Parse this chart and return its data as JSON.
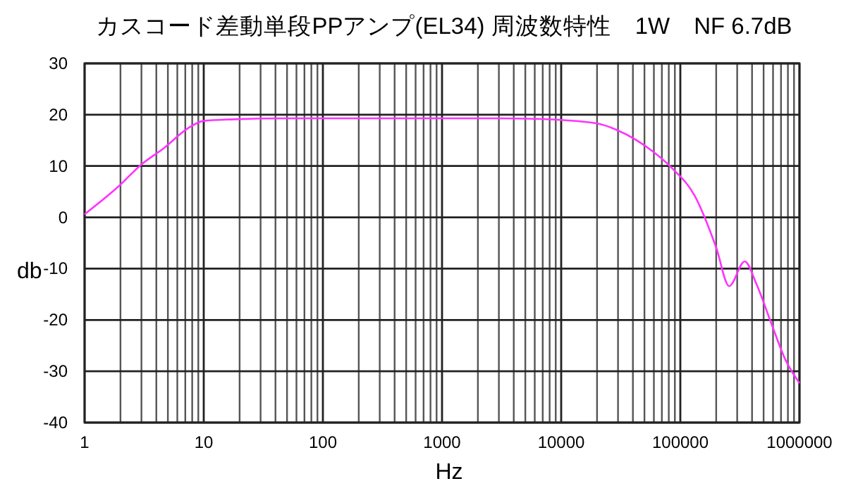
{
  "chart_data": {
    "type": "line",
    "title": "カスコード差動単段PPアンプ(EL34) 周波数特性　1W　NF 6.7dB",
    "xlabel": "Hz",
    "ylabel": "db",
    "log": "x",
    "grid": true,
    "marker": "none",
    "line_style": "solid",
    "xlim": [
      1,
      1000000
    ],
    "ylim": [
      -40,
      30
    ],
    "xticks": [
      1,
      {
        "value": 2,
        "label": null
      },
      {
        "value": 3,
        "label": null
      },
      {
        "value": 4,
        "label": null
      },
      {
        "value": 5,
        "label": null
      },
      {
        "value": 6,
        "label": null
      },
      {
        "value": 7,
        "label": null
      },
      {
        "value": 8,
        "label": null
      },
      {
        "value": 9,
        "label": null
      },
      10,
      {
        "value": 20,
        "label": null
      },
      {
        "value": 30,
        "label": null
      },
      {
        "value": 40,
        "label": null
      },
      {
        "value": 50,
        "label": null
      },
      {
        "value": 60,
        "label": null
      },
      {
        "value": 70,
        "label": null
      },
      {
        "value": 80,
        "label": null
      },
      {
        "value": 90,
        "label": null
      },
      100,
      {
        "value": 200,
        "label": null
      },
      {
        "value": 300,
        "label": null
      },
      {
        "value": 400,
        "label": null
      },
      {
        "value": 500,
        "label": null
      },
      {
        "value": 600,
        "label": null
      },
      {
        "value": 700,
        "label": null
      },
      {
        "value": 800,
        "label": null
      },
      {
        "value": 900,
        "label": null
      },
      1000,
      {
        "value": 2000,
        "label": null
      },
      {
        "value": 3000,
        "label": null
      },
      {
        "value": 4000,
        "label": null
      },
      {
        "value": 5000,
        "label": null
      },
      {
        "value": 6000,
        "label": null
      },
      {
        "value": 7000,
        "label": null
      },
      {
        "value": 8000,
        "label": null
      },
      {
        "value": 9000,
        "label": null
      },
      10000,
      {
        "value": 20000,
        "label": null
      },
      {
        "value": 30000,
        "label": null
      },
      {
        "value": 40000,
        "label": null
      },
      {
        "value": 50000,
        "label": null
      },
      {
        "value": 60000,
        "label": null
      },
      {
        "value": 70000,
        "label": null
      },
      {
        "value": 80000,
        "label": null
      },
      {
        "value": 90000,
        "label": null
      },
      100000,
      {
        "value": 200000,
        "label": null
      },
      {
        "value": 300000,
        "label": null
      },
      {
        "value": 400000,
        "label": null
      },
      {
        "value": 500000,
        "label": null
      },
      {
        "value": 600000,
        "label": null
      },
      {
        "value": 700000,
        "label": null
      },
      {
        "value": 800000,
        "label": null
      },
      {
        "value": 900000,
        "label": null
      },
      1000000
    ],
    "yticks": [
      -40,
      -30,
      -20,
      -10,
      0,
      10,
      20,
      30
    ],
    "series": [
      {
        "color": "#ff33ff",
        "x": [
          1,
          1.9,
          3,
          4.7,
          7.3,
          10,
          18,
          50,
          300,
          3000,
          6000,
          20000,
          29500,
          59000,
          85000,
          132000,
          200000,
          257000,
          347000,
          437000,
          575000,
          760000,
          1000000
        ],
        "values": [
          0.6,
          5.9,
          10.3,
          13.6,
          17.3,
          18.8,
          19.1,
          19.3,
          19.3,
          19.3,
          19.2,
          18.3,
          17,
          12.8,
          9.6,
          4.2,
          -5.9,
          -13.4,
          -8.6,
          -13.1,
          -20.4,
          -27.7,
          -32.3
        ]
      }
    ]
  }
}
